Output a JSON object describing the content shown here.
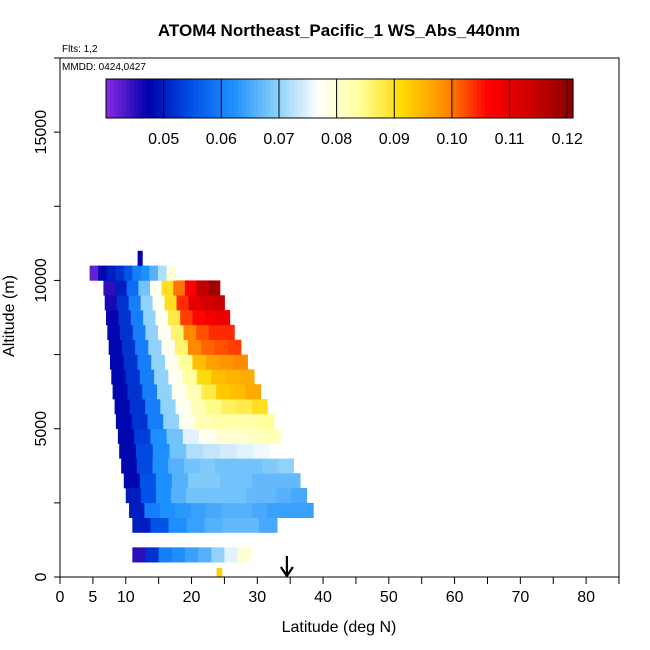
{
  "chart_data": {
    "type": "heatmap",
    "title": "ATOM4 Northeast_Pacific_1 WS_Abs_440nm",
    "flights_label": "Flts: 1,2",
    "mmdd_label": "MMDD: 0424,0427",
    "xlabel": "Latitude (deg N)",
    "ylabel": "Altitude (m)",
    "xlim": [
      0,
      85
    ],
    "ylim": [
      0,
      17500
    ],
    "x_ticks": [
      0,
      5,
      10,
      20,
      30,
      40,
      50,
      60,
      70,
      80
    ],
    "y_ticks": [
      0,
      5000,
      10000,
      15000
    ],
    "colorbar": {
      "min": 0.04,
      "max": 0.121,
      "ticks": [
        0.05,
        0.06,
        0.07,
        0.08,
        0.09,
        0.1,
        0.11,
        0.12
      ],
      "tick_labels": [
        "0.05",
        "0.06",
        "0.07",
        "0.08",
        "0.09",
        "0.10",
        "0.11",
        "0.12"
      ],
      "colors": [
        "#8a2be2",
        "#0000aa",
        "#0050e6",
        "#1e90ff",
        "#87cefa",
        "#ffffff",
        "#ffff99",
        "#ffd700",
        "#ff8c00",
        "#ff0000",
        "#cc0000",
        "#8b0000"
      ]
    },
    "arrow_marker": {
      "latitude": 34.5
    },
    "rows": [
      {
        "alt_min": 500,
        "alt_max": 1000,
        "lat_min": 11.0,
        "lat_max": 29.0,
        "values": [
          0.045,
          0.052,
          0.06,
          0.062,
          0.064,
          0.066,
          0.07,
          0.075,
          0.08
        ]
      },
      {
        "alt_min": 1500,
        "alt_max": 2000,
        "lat_min": 11.0,
        "lat_max": 33.0,
        "values": [
          0.05,
          0.055,
          0.062,
          0.064,
          0.066,
          0.067,
          0.067,
          0.065
        ]
      },
      {
        "alt_min": 2000,
        "alt_max": 2500,
        "lat_min": 10.5,
        "lat_max": 38.5,
        "values": [
          0.05,
          0.06,
          0.062,
          0.063,
          0.064,
          0.065,
          0.066,
          0.066,
          0.065,
          0.064,
          0.064,
          0.064
        ]
      },
      {
        "alt_min": 2500,
        "alt_max": 3000,
        "lat_min": 10.0,
        "lat_max": 37.5,
        "values": [
          0.05,
          0.055,
          0.062,
          0.066,
          0.068,
          0.068,
          0.068,
          0.068,
          0.067,
          0.067,
          0.066,
          0.065
        ]
      },
      {
        "alt_min": 3000,
        "alt_max": 3500,
        "lat_min": 9.7,
        "lat_max": 36.5,
        "values": [
          0.048,
          0.055,
          0.062,
          0.066,
          0.069,
          0.069,
          0.068,
          0.068,
          0.067,
          0.067,
          0.067
        ]
      },
      {
        "alt_min": 3500,
        "alt_max": 4000,
        "lat_min": 9.3,
        "lat_max": 35.5,
        "values": [
          0.048,
          0.054,
          0.062,
          0.066,
          0.068,
          0.069,
          0.068,
          0.068,
          0.068,
          0.069,
          0.07
        ]
      },
      {
        "alt_min": 4000,
        "alt_max": 4500,
        "lat_min": 9.0,
        "lat_max": 34.5,
        "values": [
          0.048,
          0.054,
          0.062,
          0.068,
          0.072,
          0.073,
          0.074,
          0.075,
          0.076,
          0.077
        ]
      },
      {
        "alt_min": 4500,
        "alt_max": 5000,
        "lat_min": 8.8,
        "lat_max": 33.5,
        "values": [
          0.048,
          0.053,
          0.062,
          0.068,
          0.075,
          0.078,
          0.08,
          0.08,
          0.081,
          0.082
        ]
      },
      {
        "alt_min": 5000,
        "alt_max": 5500,
        "lat_min": 8.5,
        "lat_max": 32.5,
        "values": [
          0.048,
          0.052,
          0.06,
          0.07,
          0.078,
          0.082,
          0.083,
          0.083,
          0.083,
          0.084
        ]
      },
      {
        "alt_min": 5500,
        "alt_max": 6000,
        "lat_min": 8.3,
        "lat_max": 31.5,
        "values": [
          0.048,
          0.052,
          0.06,
          0.07,
          0.078,
          0.082,
          0.085,
          0.087,
          0.088,
          0.09
        ]
      },
      {
        "alt_min": 6000,
        "alt_max": 6500,
        "lat_min": 8.0,
        "lat_max": 30.5,
        "values": [
          0.048,
          0.052,
          0.06,
          0.07,
          0.078,
          0.082,
          0.088,
          0.093,
          0.094,
          0.096
        ]
      },
      {
        "alt_min": 6500,
        "alt_max": 7000,
        "lat_min": 7.8,
        "lat_max": 29.5,
        "values": [
          0.048,
          0.052,
          0.06,
          0.07,
          0.078,
          0.084,
          0.091,
          0.094,
          0.095,
          0.096
        ]
      },
      {
        "alt_min": 7000,
        "alt_max": 7500,
        "lat_min": 7.6,
        "lat_max": 28.5,
        "values": [
          0.048,
          0.052,
          0.06,
          0.07,
          0.078,
          0.084,
          0.094,
          0.097,
          0.098,
          0.099
        ]
      },
      {
        "alt_min": 7500,
        "alt_max": 8000,
        "lat_min": 7.4,
        "lat_max": 27.5,
        "values": [
          0.048,
          0.052,
          0.06,
          0.07,
          0.078,
          0.086,
          0.099,
          0.101,
          0.102,
          0.103
        ]
      },
      {
        "alt_min": 8000,
        "alt_max": 8500,
        "lat_min": 7.2,
        "lat_max": 26.5,
        "values": [
          0.048,
          0.052,
          0.06,
          0.07,
          0.078,
          0.086,
          0.099,
          0.102,
          0.104,
          0.104
        ]
      },
      {
        "alt_min": 8500,
        "alt_max": 9000,
        "lat_min": 7.0,
        "lat_max": 25.8,
        "values": [
          0.047,
          0.052,
          0.06,
          0.07,
          0.078,
          0.088,
          0.103,
          0.106,
          0.108,
          0.109
        ]
      },
      {
        "alt_min": 9000,
        "alt_max": 9500,
        "lat_min": 6.8,
        "lat_max": 25.0,
        "values": [
          0.046,
          0.052,
          0.06,
          0.07,
          0.078,
          0.09,
          0.104,
          0.11,
          0.112,
          0.114
        ]
      },
      {
        "alt_min": 9500,
        "alt_max": 10000,
        "lat_min": 6.6,
        "lat_max": 24.3,
        "values": [
          0.045,
          0.05,
          0.058,
          0.068,
          0.078,
          0.09,
          0.1,
          0.107,
          0.115,
          0.118
        ]
      },
      {
        "alt_min": 10000,
        "alt_max": 10500,
        "lat_min": 4.5,
        "lat_max": 17.5,
        "values": [
          0.042,
          0.048,
          0.05,
          0.052,
          0.055,
          0.06,
          0.062,
          0.066,
          0.072,
          0.08
        ]
      },
      {
        "alt_min": 10500,
        "alt_max": 11000,
        "lat_min": 11.8,
        "lat_max": 12.5,
        "values": [
          0.047
        ]
      },
      {
        "alt_min": 0,
        "alt_max": 300,
        "lat_min": 23.8,
        "lat_max": 24.6,
        "values": [
          0.092
        ]
      }
    ]
  }
}
